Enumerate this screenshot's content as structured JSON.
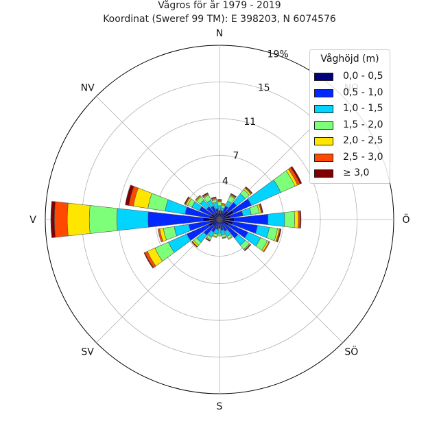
{
  "chart_data": {
    "type": "wind-rose",
    "title": "Vågros för år 1979 - 2019",
    "subtitle": "Koordinat (Sweref 99 TM): E 398203, N 6074576",
    "radial_unit": "%",
    "radial_max": 19,
    "radial_ticks": [
      4,
      7,
      11,
      15,
      19
    ],
    "radial_tick_labels": [
      "4",
      "7",
      "11",
      "15",
      "19%"
    ],
    "direction_labels": [
      "N",
      "NO",
      "Ö",
      "SÖ",
      "S",
      "SV",
      "V",
      "NV"
    ],
    "legend_title": "Våghöjd (m)",
    "series": [
      {
        "name": "0,0 - 0,5",
        "color": "#00007f"
      },
      {
        "name": "0,5 - 1,0",
        "color": "#0028ff"
      },
      {
        "name": "1,0 - 1,5",
        "color": "#00d4ff"
      },
      {
        "name": "1,5 - 2,0",
        "color": "#7dff7a"
      },
      {
        "name": "2,0 - 2,5",
        "color": "#ffe600"
      },
      {
        "name": "2,5 - 3,0",
        "color": "#ff4800"
      },
      {
        "name": "≥ 3,0",
        "color": "#7f0000"
      }
    ],
    "directions_deg": [
      0,
      15,
      30,
      45,
      60,
      75,
      90,
      105,
      120,
      135,
      150,
      165,
      180,
      195,
      210,
      225,
      240,
      255,
      270,
      285,
      300,
      315,
      330,
      345
    ],
    "cumulative": [
      [
        0.8,
        1.0,
        1.5,
        1.9,
        2.0,
        2.1,
        2.2
      ],
      [
        0.7,
        1.0,
        1.3,
        1.6,
        1.7,
        1.8,
        1.8
      ],
      [
        0.8,
        1.6,
        2.2,
        2.8,
        2.9,
        3.0,
        3.1
      ],
      [
        1.2,
        2.4,
        3.6,
        4.2,
        4.4,
        4.5,
        4.6
      ],
      [
        1.7,
        3.8,
        7.3,
        9.0,
        9.3,
        9.6,
        9.8
      ],
      [
        1.2,
        2.6,
        3.5,
        4.4,
        4.6,
        4.7,
        4.8
      ],
      [
        1.6,
        5.3,
        7.1,
        8.2,
        8.6,
        8.8,
        8.9
      ],
      [
        1.5,
        4.2,
        5.5,
        6.4,
        6.6,
        6.7,
        6.8
      ],
      [
        1.1,
        3.4,
        4.9,
        5.7,
        5.9,
        6.0,
        6.0
      ],
      [
        0.7,
        2.6,
        3.6,
        4.2,
        4.3,
        4.3,
        4.4
      ],
      [
        0.6,
        1.4,
        2.0,
        2.3,
        2.4,
        2.4,
        2.4
      ],
      [
        0.5,
        1.2,
        1.7,
        2.0,
        2.0,
        2.1,
        2.1
      ],
      [
        0.5,
        1.0,
        1.5,
        1.7,
        1.8,
        1.8,
        1.8
      ],
      [
        0.5,
        1.1,
        1.6,
        1.9,
        2.0,
        2.0,
        2.0
      ],
      [
        0.6,
        1.5,
        2.1,
        2.4,
        2.5,
        2.5,
        2.6
      ],
      [
        0.9,
        2.2,
        3.2,
        3.6,
        3.8,
        3.8,
        3.9
      ],
      [
        1.3,
        3.9,
        6.1,
        7.7,
        8.6,
        8.9,
        9.0
      ],
      [
        1.1,
        3.4,
        5.0,
        6.2,
        6.6,
        6.8,
        6.8
      ],
      [
        1.8,
        7.8,
        11.2,
        14.2,
        16.6,
        18.0,
        18.4
      ],
      [
        1.1,
        3.8,
        6.0,
        7.9,
        9.5,
        10.0,
        10.4
      ],
      [
        1.0,
        2.4,
        3.3,
        3.8,
        4.0,
        4.1,
        4.2
      ],
      [
        0.8,
        1.8,
        2.7,
        3.2,
        3.3,
        3.4,
        3.4
      ],
      [
        0.8,
        1.6,
        2.3,
        2.9,
        3.0,
        3.1,
        3.2
      ],
      [
        0.7,
        1.2,
        1.9,
        2.2,
        2.3,
        2.4,
        2.5
      ]
    ]
  }
}
